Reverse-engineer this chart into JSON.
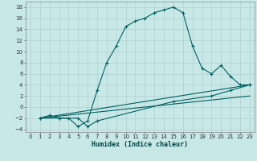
{
  "xlabel": "Humidex (Indice chaleur)",
  "background_color": "#c8e8e8",
  "grid_color": "#b0d0d0",
  "line_color": "#006060",
  "xlim": [
    -0.5,
    23.5
  ],
  "ylim": [
    -4.5,
    19
  ],
  "xticks": [
    0,
    1,
    2,
    3,
    4,
    5,
    6,
    7,
    8,
    9,
    10,
    11,
    12,
    13,
    14,
    15,
    16,
    17,
    18,
    19,
    20,
    21,
    22,
    23
  ],
  "yticks": [
    -4,
    -2,
    0,
    2,
    4,
    6,
    8,
    10,
    12,
    14,
    16,
    18
  ],
  "series1_x": [
    1,
    2,
    3,
    4,
    5,
    6,
    7,
    8,
    9,
    10,
    11,
    12,
    13,
    14,
    15,
    16,
    17,
    18,
    19,
    20,
    21,
    22,
    23
  ],
  "series1_y": [
    -2,
    -1.5,
    -2,
    -2,
    -3.5,
    -2.5,
    3,
    8,
    11,
    14.5,
    15.5,
    16,
    17,
    17.5,
    18,
    17,
    11,
    7,
    6,
    7.5,
    5.5,
    4,
    4
  ],
  "series2_x": [
    1,
    3,
    5,
    6,
    7,
    15,
    19,
    21,
    23
  ],
  "series2_y": [
    -2,
    -2,
    -2,
    -3.5,
    -2.5,
    1,
    2,
    3,
    4
  ],
  "series3_x": [
    1,
    23
  ],
  "series3_y": [
    -2,
    4
  ],
  "series4_x": [
    1,
    23
  ],
  "series4_y": [
    -2,
    2
  ]
}
